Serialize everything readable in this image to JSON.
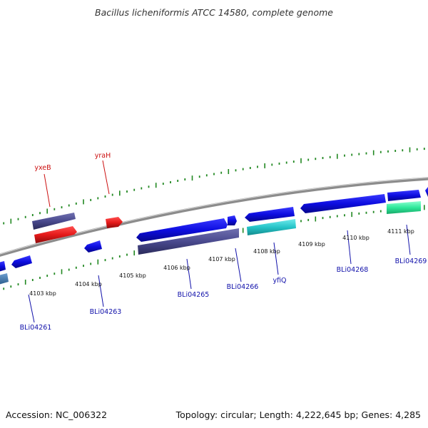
{
  "title": "Bacillus licheniformis ATCC 14580, complete genome",
  "footer": {
    "accession": "Accession: NC_006322",
    "summary": "Topology: circular; Length: 4,222,645 bp; Genes: 4,285"
  },
  "colors": {
    "backbone": "#8c8c8c",
    "ticks": "#228822",
    "forward_gene": "#0d0de0",
    "reverse_gene": "#0d0de0",
    "slate_gene": "#4a4a8e",
    "red_gene": "#e51a1a",
    "cyan_gene": "#25c4c8",
    "green_gene": "#2ee89a",
    "label_red": "#cc1111",
    "label_blue": "#1111aa"
  },
  "kbp_labels": [
    "4103 kbp",
    "4104 kbp",
    "4105 kbp",
    "4106 kbp",
    "4107 kbp",
    "4108 kbp",
    "4109 kbp",
    "4110 kbp",
    "4111 kbp"
  ],
  "gene_labels_top": [
    "yxeB",
    "yraH"
  ],
  "gene_labels_bottom": [
    "BLi04261",
    "BLi04263",
    "BLi04265",
    "BLi04266",
    "yfiQ",
    "BLi04268",
    "BLi04269"
  ]
}
